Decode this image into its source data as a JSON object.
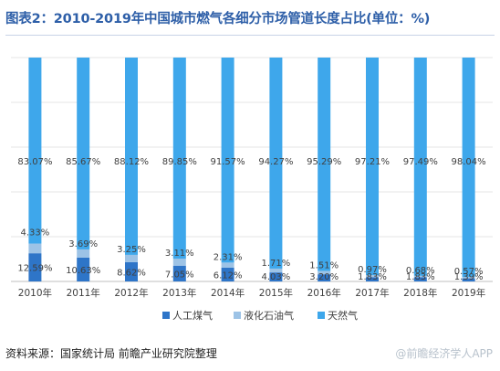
{
  "title": "图表2：2010-2019年中国城市燃气各细分市场管道长度占比(单位：%)",
  "source": "资料来源：国家统计局 前瞻产业研究院整理",
  "watermark": "@前瞻经济学人APP",
  "chart_data": {
    "type": "bar",
    "stacked": true,
    "categories": [
      "2010年",
      "2011年",
      "2012年",
      "2013年",
      "2014年",
      "2015年",
      "2016年",
      "2017年",
      "2018年",
      "2019年"
    ],
    "series": [
      {
        "name": "人工煤气",
        "color": "#2e75c8",
        "values": [
          12.59,
          10.63,
          8.62,
          7.05,
          6.12,
          4.03,
          3.2,
          1.83,
          1.83,
          1.39
        ]
      },
      {
        "name": "液化石油气",
        "color": "#9dc3e6",
        "values": [
          4.33,
          3.69,
          3.25,
          3.11,
          2.31,
          1.71,
          1.51,
          0.97,
          0.68,
          0.57
        ]
      },
      {
        "name": "天然气",
        "color": "#3ea7eb",
        "values": [
          83.07,
          85.67,
          88.12,
          89.85,
          91.57,
          94.27,
          95.29,
          97.21,
          97.49,
          98.04
        ]
      }
    ],
    "labels": [
      [
        "12.59%",
        "10.63%",
        "8.62%",
        "7.05%",
        "6.12%",
        "4.03%",
        "3.20%",
        "1.83%",
        "1.83%",
        "1.39%"
      ],
      [
        "4.33%",
        "3.69%",
        "3.25%",
        "3.11%",
        "2.31%",
        "1.71%",
        "1.51%",
        "0.97%",
        "0.68%",
        "0.57%"
      ],
      [
        "83.07%",
        "85.67%",
        "88.12%",
        "89.85%",
        "91.57%",
        "94.27%",
        "95.29%",
        "97.21%",
        "97.49%",
        "98.04%"
      ]
    ],
    "ylim": [
      0,
      100
    ],
    "grid": true,
    "legend": "bottom"
  }
}
